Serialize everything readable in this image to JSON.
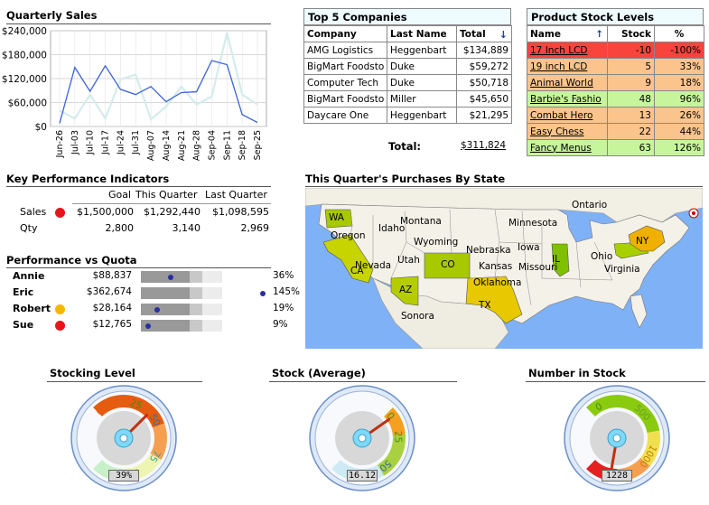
{
  "quarterly_sales": {
    "title": "Quarterly Sales",
    "chart_data": {
      "type": "line",
      "title": "Quarterly Sales",
      "categories": [
        "Jun-26",
        "Jul-03",
        "Jul-10",
        "Jul-17",
        "Jul-24",
        "Jul-31",
        "Aug-07",
        "Aug-14",
        "Aug-21",
        "Aug-28",
        "Sep-04",
        "Sep-11",
        "Sep-18",
        "Sep-25"
      ],
      "ylim": [
        0,
        240000
      ],
      "yticks": [
        "$0",
        "$60,000",
        "$120,000",
        "$180,000",
        "$240,000"
      ],
      "grid": true,
      "series": [
        {
          "values": [
            8000,
            148000,
            88000,
            152000,
            93000,
            80000,
            100000,
            62000,
            85000,
            87000,
            165000,
            155000,
            30000,
            10000
          ],
          "color": "#3b64d8"
        },
        {
          "values": [
            40000,
            20000,
            80000,
            20000,
            118000,
            130000,
            18000,
            50000,
            100000,
            55000,
            75000,
            235000,
            80000,
            55000
          ],
          "color": "#d4ecec"
        }
      ]
    }
  },
  "top_companies": {
    "title": "Top 5 Companies",
    "headers": [
      "Company",
      "Last Name",
      "Total"
    ],
    "rows": [
      [
        "AMG Logistics",
        "Heggenbart",
        "$134,889"
      ],
      [
        "BigMart Foodsto",
        "Duke",
        "$59,272"
      ],
      [
        "Computer Tech",
        "Duke",
        "$50,718"
      ],
      [
        "BigMart Foodsto",
        "Miller",
        "$45,650"
      ],
      [
        "Daycare One",
        "Heggenbart",
        "$21,295"
      ]
    ],
    "total_label": "Total:",
    "total_value": "$311,824"
  },
  "stock_levels": {
    "title": "Product Stock Levels",
    "headers": [
      "Name",
      "Stock",
      "%"
    ],
    "rows": [
      {
        "name": "17 Inch LCD",
        "stock": "-10",
        "pct": "-100%",
        "status": "red"
      },
      {
        "name": "19 inch LCD",
        "stock": "5",
        "pct": "33%",
        "status": "orange"
      },
      {
        "name": "Animal World",
        "stock": "9",
        "pct": "18%",
        "status": "orange"
      },
      {
        "name": "Barbie's Fashio",
        "stock": "48",
        "pct": "96%",
        "status": "green"
      },
      {
        "name": "Combat Hero",
        "stock": "13",
        "pct": "26%",
        "status": "orange"
      },
      {
        "name": "Easy Chess",
        "stock": "22",
        "pct": "44%",
        "status": "orange"
      },
      {
        "name": "Fancy Menus",
        "stock": "63",
        "pct": "126%",
        "status": "green"
      }
    ]
  },
  "kpi": {
    "title": "Key Performance Indicators",
    "headers": [
      "Goal",
      "This Quarter",
      "Last Quarter"
    ],
    "rows": [
      {
        "label": "Sales",
        "goal": "$1,500,000",
        "this_q": "$1,292,440",
        "last_q": "$1,098,595",
        "dot": "#e8141c"
      },
      {
        "label": "Qty",
        "goal": "2,800",
        "this_q": "3,140",
        "last_q": "2,969",
        "dot": ""
      }
    ]
  },
  "quota": {
    "title": "Performance vs Quota",
    "rows": [
      {
        "name": "Annie",
        "amount": "$88,837",
        "pct": "36%",
        "dot": "",
        "level": 0.36
      },
      {
        "name": "Eric",
        "amount": "$362,674",
        "pct": "145%",
        "dot": "",
        "level": 1.45
      },
      {
        "name": "Robert",
        "amount": "$28,164",
        "pct": "19%",
        "dot": "#f5b800",
        "level": 0.19
      },
      {
        "name": "Sue",
        "amount": "$12,765",
        "pct": "9%",
        "dot": "#e8141c",
        "level": 0.09
      }
    ]
  },
  "map": {
    "title": "This Quarter's Purchases By State",
    "labels": [
      "Ontario",
      "WA",
      "Montana",
      "Minnesota",
      "Oregon",
      "Idaho",
      "Wyoming",
      "Nebraska",
      "Iowa",
      "NY",
      "Ohio",
      "Nevada",
      "Utah",
      "CO",
      "Kansas",
      "Missouri",
      "IL",
      "Virginia",
      "CA",
      "AZ",
      "Oklahoma",
      "TX",
      "Sonora"
    ]
  },
  "gauges": [
    {
      "title": "Stocking Level",
      "readout": "39%",
      "value": 39,
      "ticks": [
        "25",
        "50",
        "75",
        "100",
        "0"
      ]
    },
    {
      "title": "Stock (Average)",
      "readout": "16.12",
      "value": 16.12,
      "ticks": [
        "0",
        "25",
        "50"
      ]
    },
    {
      "title": "Number in Stock",
      "readout": "1228",
      "value": 1228,
      "ticks": [
        "0",
        "500",
        "1000",
        "1500"
      ]
    }
  ]
}
